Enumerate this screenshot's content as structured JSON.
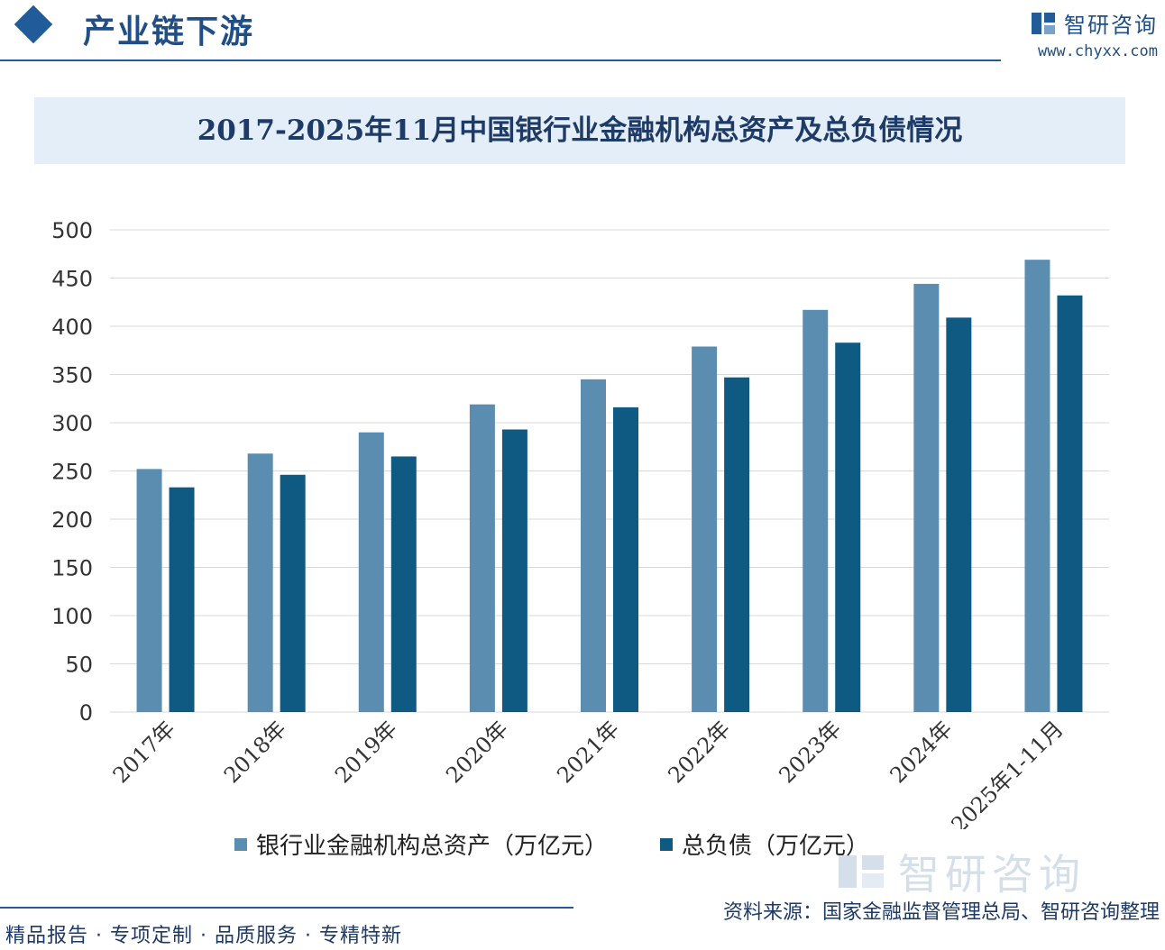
{
  "header": {
    "section_title": "产业链下游",
    "brand_name": "智研咨询",
    "brand_url": "www.chyxx.com"
  },
  "chart_title": "2017-2025年11月中国银行业金融机构总资产及总负债情况",
  "legend": {
    "assets_label": "银行业金融机构总资产（万亿元）",
    "liabilities_label": "总负债（万亿元）"
  },
  "footer": {
    "tagline": "精品报告 · 专项定制 · 品质服务 · 专精特新",
    "source": "资料来源：国家金融监督管理总局、智研咨询整理",
    "watermark": "智研咨询"
  },
  "colors": {
    "assets": "#5b8db0",
    "liabilities": "#0f5a82",
    "grid": "#d9d9d9",
    "brand": "#1f5c99"
  },
  "chart_data": {
    "type": "bar",
    "categories": [
      "2017年",
      "2018年",
      "2019年",
      "2020年",
      "2021年",
      "2022年",
      "2023年",
      "2024年",
      "2025年1-11月"
    ],
    "series": [
      {
        "name": "银行业金融机构总资产（万亿元）",
        "values": [
          252,
          268,
          290,
          319,
          345,
          379,
          417,
          444,
          469
        ]
      },
      {
        "name": "总负债（万亿元）",
        "values": [
          233,
          246,
          265,
          293,
          316,
          347,
          383,
          409,
          432
        ]
      }
    ],
    "yticks": [
      "0",
      "50",
      "100",
      "150",
      "200",
      "250",
      "300",
      "350",
      "400",
      "450",
      "500"
    ],
    "ylim": [
      0,
      500
    ],
    "grid": true,
    "legend_position": "bottom"
  }
}
